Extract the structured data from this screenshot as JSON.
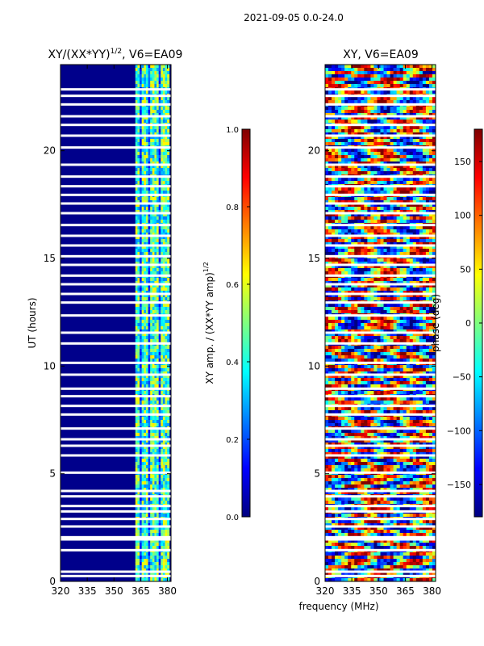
{
  "figure_title": "2021-09-05 0.0-24.0",
  "xlabel": "frequency (MHz)",
  "colors": {
    "jet": [
      "#00007f",
      "#0000ff",
      "#007fff",
      "#00ffff",
      "#7fff7f",
      "#ffff00",
      "#ff7f00",
      "#ff0000",
      "#7f0000"
    ],
    "bg": "#00008b",
    "gap": "#ffffff"
  },
  "chart_data": [
    {
      "type": "heatmap",
      "title": "XY/(XX*YY)",
      "title_power": "1/2",
      "title_suffix": ", V6=EA09",
      "xlabel": "",
      "ylabel": "UT (hours)",
      "xlim": [
        320,
        382
      ],
      "ylim": [
        0,
        24
      ],
      "xticks": [
        320,
        335,
        350,
        365,
        380
      ],
      "yticks": [
        0,
        5,
        10,
        15,
        20
      ],
      "colorbar": {
        "label": "XY amp. / (XX*YY amp)",
        "label_power": "1/2",
        "range": [
          0.0,
          1.0
        ],
        "ticks": [
          0.0,
          0.2,
          0.4,
          0.6,
          0.8,
          1.0
        ],
        "tick_labels": [
          "0.0",
          "0.2",
          "0.4",
          "0.6",
          "0.8",
          "1.0"
        ]
      },
      "bright_band_MHz": [
        362,
        381
      ],
      "bright_band_level": 0.45
    },
    {
      "type": "heatmap",
      "title": "XY, V6=EA09",
      "xlabel": "frequency (MHz)",
      "ylabel": "",
      "xlim": [
        320,
        382
      ],
      "ylim": [
        0,
        24
      ],
      "xticks": [
        320,
        335,
        350,
        365,
        380
      ],
      "yticks": [
        0,
        5,
        10,
        15,
        20
      ],
      "colorbar": {
        "label": "phase (deg)",
        "range": [
          -180,
          180
        ],
        "ticks": [
          150,
          100,
          50,
          0,
          -50,
          -100,
          -150
        ],
        "tick_labels": [
          "150",
          "100",
          "50",
          "0",
          "−50",
          "−100",
          "−150"
        ]
      }
    }
  ],
  "gaps_hours": [
    0.25,
    0.45,
    1.45,
    1.95,
    2.05,
    2.55,
    2.9,
    3.25,
    3.5,
    3.95,
    4.2,
    5.05,
    5.85,
    6.3,
    6.6,
    7.1,
    7.75,
    8.15,
    8.6,
    8.95,
    9.6,
    10.15,
    11.05,
    11.55,
    12.35,
    12.95,
    13.35,
    13.8,
    14.2,
    14.7,
    15.1,
    15.6,
    16.05,
    16.55,
    17.1,
    17.55,
    17.95,
    18.35,
    18.8,
    19.35,
    20.15,
    20.7,
    21.2,
    21.6,
    22.15,
    22.55,
    22.85
  ]
}
